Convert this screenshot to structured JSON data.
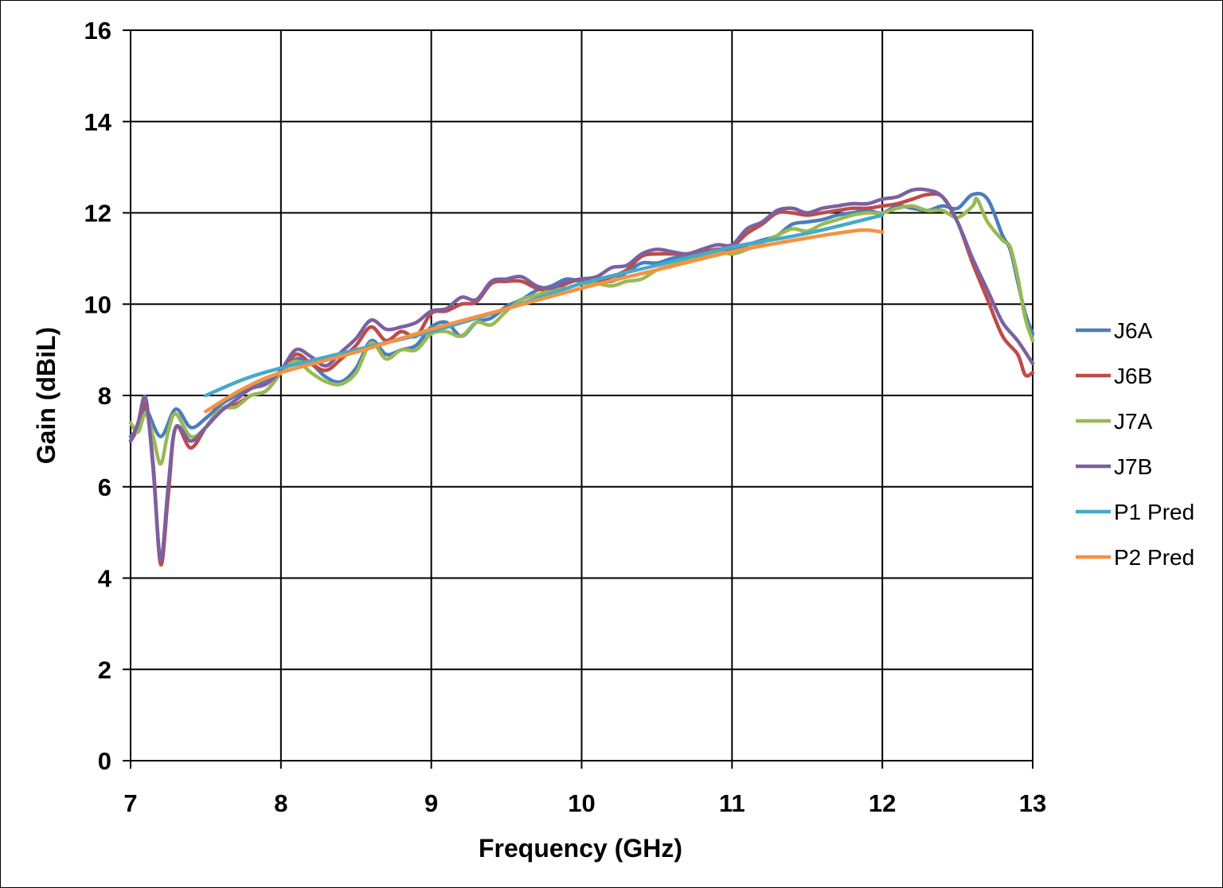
{
  "chart_data": {
    "type": "line",
    "title": "",
    "xlabel": "Frequency (GHz)",
    "ylabel": "Gain (dBiL)",
    "xlim": [
      7,
      13
    ],
    "ylim": [
      0,
      16
    ],
    "xticks": [
      "7",
      "8",
      "9",
      "10",
      "11",
      "12",
      "13"
    ],
    "yticks": [
      "0",
      "2",
      "4",
      "6",
      "8",
      "10",
      "12",
      "14",
      "16"
    ],
    "grid": true,
    "legend_position": "right",
    "series": [
      {
        "name": "J6A",
        "color": "#4a7ebb",
        "points": [
          [
            7.0,
            7.1
          ],
          [
            7.05,
            7.3
          ],
          [
            7.1,
            7.7
          ],
          [
            7.2,
            7.1
          ],
          [
            7.3,
            7.7
          ],
          [
            7.4,
            7.3
          ],
          [
            7.5,
            7.5
          ],
          [
            7.6,
            7.8
          ],
          [
            7.7,
            8.0
          ],
          [
            7.8,
            8.2
          ],
          [
            7.9,
            8.3
          ],
          [
            8.0,
            8.5
          ],
          [
            8.1,
            8.8
          ],
          [
            8.2,
            8.7
          ],
          [
            8.3,
            8.4
          ],
          [
            8.4,
            8.3
          ],
          [
            8.5,
            8.6
          ],
          [
            8.6,
            9.2
          ],
          [
            8.7,
            8.9
          ],
          [
            8.8,
            9.0
          ],
          [
            8.9,
            9.1
          ],
          [
            9.0,
            9.5
          ],
          [
            9.1,
            9.6
          ],
          [
            9.2,
            9.3
          ],
          [
            9.3,
            9.6
          ],
          [
            9.4,
            9.7
          ],
          [
            9.5,
            9.95
          ],
          [
            9.6,
            10.1
          ],
          [
            9.7,
            10.3
          ],
          [
            9.8,
            10.4
          ],
          [
            9.9,
            10.55
          ],
          [
            10.0,
            10.5
          ],
          [
            10.1,
            10.55
          ],
          [
            10.2,
            10.5
          ],
          [
            10.3,
            10.7
          ],
          [
            10.4,
            10.9
          ],
          [
            10.5,
            10.9
          ],
          [
            10.6,
            11.0
          ],
          [
            10.7,
            11.05
          ],
          [
            10.8,
            11.1
          ],
          [
            10.9,
            11.2
          ],
          [
            11.0,
            11.2
          ],
          [
            11.1,
            11.3
          ],
          [
            11.2,
            11.4
          ],
          [
            11.3,
            11.5
          ],
          [
            11.4,
            11.75
          ],
          [
            11.5,
            11.8
          ],
          [
            11.6,
            11.85
          ],
          [
            11.7,
            11.95
          ],
          [
            11.8,
            12.0
          ],
          [
            11.9,
            12.05
          ],
          [
            12.0,
            12.0
          ],
          [
            12.1,
            12.15
          ],
          [
            12.2,
            12.1
          ],
          [
            12.3,
            12.05
          ],
          [
            12.4,
            12.15
          ],
          [
            12.5,
            12.1
          ],
          [
            12.6,
            12.4
          ],
          [
            12.7,
            12.3
          ],
          [
            12.8,
            11.5
          ],
          [
            12.85,
            11.2
          ],
          [
            12.9,
            10.5
          ],
          [
            12.95,
            9.8
          ],
          [
            13.0,
            9.35
          ]
        ]
      },
      {
        "name": "J6B",
        "color": "#be4b48",
        "points": [
          [
            7.0,
            7.0
          ],
          [
            7.05,
            7.3
          ],
          [
            7.1,
            7.8
          ],
          [
            7.15,
            6.5
          ],
          [
            7.2,
            4.3
          ],
          [
            7.25,
            5.8
          ],
          [
            7.3,
            7.3
          ],
          [
            7.4,
            6.85
          ],
          [
            7.5,
            7.3
          ],
          [
            7.6,
            7.7
          ],
          [
            7.7,
            7.8
          ],
          [
            7.8,
            8.0
          ],
          [
            7.9,
            8.1
          ],
          [
            8.0,
            8.5
          ],
          [
            8.1,
            8.9
          ],
          [
            8.2,
            8.7
          ],
          [
            8.3,
            8.55
          ],
          [
            8.4,
            8.8
          ],
          [
            8.5,
            9.1
          ],
          [
            8.6,
            9.5
          ],
          [
            8.7,
            9.2
          ],
          [
            8.8,
            9.4
          ],
          [
            8.9,
            9.3
          ],
          [
            9.0,
            9.8
          ],
          [
            9.1,
            9.85
          ],
          [
            9.2,
            10.0
          ],
          [
            9.3,
            10.05
          ],
          [
            9.4,
            10.45
          ],
          [
            9.5,
            10.5
          ],
          [
            9.6,
            10.5
          ],
          [
            9.7,
            10.35
          ],
          [
            9.8,
            10.3
          ],
          [
            9.9,
            10.45
          ],
          [
            10.0,
            10.55
          ],
          [
            10.1,
            10.5
          ],
          [
            10.2,
            10.6
          ],
          [
            10.3,
            10.75
          ],
          [
            10.4,
            11.05
          ],
          [
            10.5,
            11.1
          ],
          [
            10.6,
            11.1
          ],
          [
            10.7,
            11.1
          ],
          [
            10.8,
            11.15
          ],
          [
            10.9,
            11.2
          ],
          [
            11.0,
            11.25
          ],
          [
            11.1,
            11.55
          ],
          [
            11.2,
            11.75
          ],
          [
            11.3,
            12.0
          ],
          [
            11.4,
            12.0
          ],
          [
            11.5,
            11.95
          ],
          [
            11.6,
            12.0
          ],
          [
            11.7,
            12.05
          ],
          [
            11.8,
            12.1
          ],
          [
            11.9,
            12.1
          ],
          [
            12.0,
            12.15
          ],
          [
            12.1,
            12.2
          ],
          [
            12.2,
            12.3
          ],
          [
            12.3,
            12.4
          ],
          [
            12.4,
            12.35
          ],
          [
            12.5,
            11.8
          ],
          [
            12.6,
            10.9
          ],
          [
            12.7,
            10.1
          ],
          [
            12.8,
            9.3
          ],
          [
            12.9,
            8.9
          ],
          [
            12.95,
            8.45
          ],
          [
            13.0,
            8.5
          ]
        ]
      },
      {
        "name": "J7A",
        "color": "#98b954",
        "points": [
          [
            7.0,
            7.4
          ],
          [
            7.05,
            7.2
          ],
          [
            7.1,
            7.6
          ],
          [
            7.15,
            7.1
          ],
          [
            7.2,
            6.5
          ],
          [
            7.25,
            7.2
          ],
          [
            7.3,
            7.6
          ],
          [
            7.4,
            7.1
          ],
          [
            7.5,
            7.3
          ],
          [
            7.6,
            7.7
          ],
          [
            7.7,
            7.75
          ],
          [
            7.8,
            8.0
          ],
          [
            7.9,
            8.1
          ],
          [
            8.0,
            8.5
          ],
          [
            8.1,
            8.75
          ],
          [
            8.2,
            8.5
          ],
          [
            8.3,
            8.3
          ],
          [
            8.4,
            8.25
          ],
          [
            8.5,
            8.5
          ],
          [
            8.6,
            9.15
          ],
          [
            8.7,
            8.8
          ],
          [
            8.8,
            9.0
          ],
          [
            8.9,
            9.0
          ],
          [
            9.0,
            9.35
          ],
          [
            9.1,
            9.4
          ],
          [
            9.2,
            9.3
          ],
          [
            9.3,
            9.6
          ],
          [
            9.4,
            9.55
          ],
          [
            9.5,
            9.85
          ],
          [
            9.6,
            10.1
          ],
          [
            9.7,
            10.2
          ],
          [
            9.8,
            10.3
          ],
          [
            9.9,
            10.35
          ],
          [
            10.0,
            10.45
          ],
          [
            10.1,
            10.45
          ],
          [
            10.2,
            10.4
          ],
          [
            10.3,
            10.5
          ],
          [
            10.4,
            10.55
          ],
          [
            10.5,
            10.75
          ],
          [
            10.6,
            10.85
          ],
          [
            10.7,
            10.95
          ],
          [
            10.8,
            11.05
          ],
          [
            10.9,
            11.15
          ],
          [
            11.0,
            11.1
          ],
          [
            11.1,
            11.2
          ],
          [
            11.2,
            11.35
          ],
          [
            11.3,
            11.5
          ],
          [
            11.4,
            11.65
          ],
          [
            11.5,
            11.6
          ],
          [
            11.6,
            11.75
          ],
          [
            11.7,
            11.85
          ],
          [
            11.8,
            11.95
          ],
          [
            11.9,
            12.0
          ],
          [
            12.0,
            12.0
          ],
          [
            12.1,
            12.1
          ],
          [
            12.2,
            12.15
          ],
          [
            12.3,
            12.05
          ],
          [
            12.4,
            12.05
          ],
          [
            12.5,
            11.9
          ],
          [
            12.6,
            12.15
          ],
          [
            12.63,
            12.3
          ],
          [
            12.7,
            11.8
          ],
          [
            12.8,
            11.4
          ],
          [
            12.85,
            11.25
          ],
          [
            12.9,
            10.6
          ],
          [
            12.95,
            9.7
          ],
          [
            13.0,
            9.2
          ]
        ]
      },
      {
        "name": "J7B",
        "color": "#7d60a0",
        "points": [
          [
            7.0,
            7.0
          ],
          [
            7.05,
            7.4
          ],
          [
            7.1,
            7.95
          ],
          [
            7.15,
            6.4
          ],
          [
            7.2,
            4.4
          ],
          [
            7.25,
            6.0
          ],
          [
            7.3,
            7.3
          ],
          [
            7.4,
            7.0
          ],
          [
            7.5,
            7.3
          ],
          [
            7.6,
            7.65
          ],
          [
            7.7,
            7.9
          ],
          [
            7.8,
            8.15
          ],
          [
            7.9,
            8.25
          ],
          [
            8.0,
            8.55
          ],
          [
            8.1,
            9.0
          ],
          [
            8.2,
            8.85
          ],
          [
            8.3,
            8.65
          ],
          [
            8.4,
            8.95
          ],
          [
            8.5,
            9.25
          ],
          [
            8.6,
            9.65
          ],
          [
            8.7,
            9.45
          ],
          [
            8.8,
            9.5
          ],
          [
            8.9,
            9.6
          ],
          [
            9.0,
            9.85
          ],
          [
            9.1,
            9.9
          ],
          [
            9.2,
            10.15
          ],
          [
            9.3,
            10.1
          ],
          [
            9.4,
            10.5
          ],
          [
            9.5,
            10.55
          ],
          [
            9.6,
            10.6
          ],
          [
            9.7,
            10.4
          ],
          [
            9.8,
            10.35
          ],
          [
            9.9,
            10.5
          ],
          [
            10.0,
            10.55
          ],
          [
            10.1,
            10.6
          ],
          [
            10.2,
            10.8
          ],
          [
            10.3,
            10.85
          ],
          [
            10.4,
            11.1
          ],
          [
            10.5,
            11.2
          ],
          [
            10.6,
            11.15
          ],
          [
            10.7,
            11.1
          ],
          [
            10.8,
            11.2
          ],
          [
            10.9,
            11.3
          ],
          [
            11.0,
            11.3
          ],
          [
            11.1,
            11.65
          ],
          [
            11.2,
            11.8
          ],
          [
            11.3,
            12.05
          ],
          [
            11.4,
            12.1
          ],
          [
            11.5,
            12.0
          ],
          [
            11.6,
            12.1
          ],
          [
            11.7,
            12.15
          ],
          [
            11.8,
            12.2
          ],
          [
            11.9,
            12.2
          ],
          [
            12.0,
            12.3
          ],
          [
            12.1,
            12.35
          ],
          [
            12.2,
            12.5
          ],
          [
            12.3,
            12.5
          ],
          [
            12.4,
            12.35
          ],
          [
            12.5,
            11.8
          ],
          [
            12.6,
            11.0
          ],
          [
            12.7,
            10.3
          ],
          [
            12.8,
            9.6
          ],
          [
            12.9,
            9.2
          ],
          [
            13.0,
            8.7
          ]
        ]
      },
      {
        "name": "P1 Pred",
        "color": "#46aac5",
        "points": [
          [
            7.5,
            8.0
          ],
          [
            7.75,
            8.35
          ],
          [
            8.0,
            8.6
          ],
          [
            8.5,
            9.0
          ],
          [
            9.0,
            9.4
          ],
          [
            9.5,
            9.9
          ],
          [
            10.0,
            10.45
          ],
          [
            10.5,
            10.85
          ],
          [
            11.0,
            11.25
          ],
          [
            11.5,
            11.55
          ],
          [
            12.0,
            11.95
          ]
        ]
      },
      {
        "name": "P2 Pred",
        "color": "#f69240",
        "points": [
          [
            7.5,
            7.65
          ],
          [
            7.75,
            8.15
          ],
          [
            8.0,
            8.5
          ],
          [
            8.5,
            8.95
          ],
          [
            9.0,
            9.45
          ],
          [
            9.5,
            9.9
          ],
          [
            10.0,
            10.35
          ],
          [
            10.5,
            10.75
          ],
          [
            11.0,
            11.15
          ],
          [
            11.5,
            11.45
          ],
          [
            11.8,
            11.6
          ],
          [
            11.9,
            11.62
          ],
          [
            12.0,
            11.58
          ]
        ]
      }
    ]
  }
}
